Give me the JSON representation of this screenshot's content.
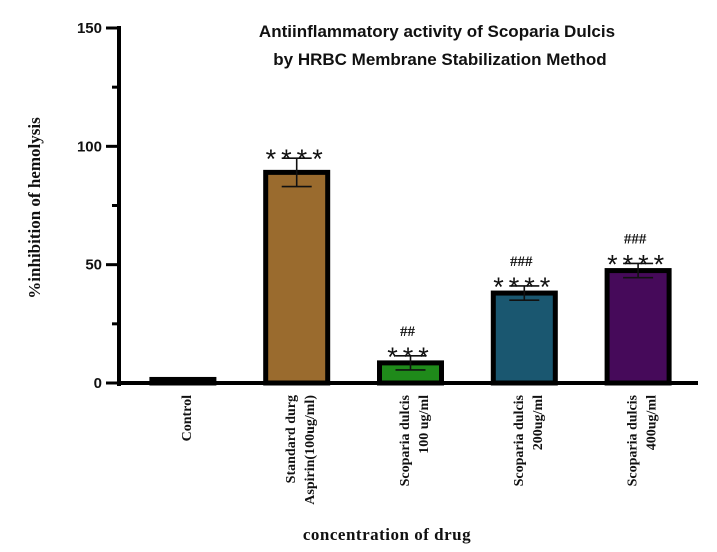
{
  "chart_data": {
    "type": "bar",
    "title": [
      "Antiinflammatory activity of Scoparia Dulcis",
      "by  HRBC Membrane Stabilization Method"
    ],
    "xlabel": "concentration of drug",
    "ylabel": "%inhibition of hemolysis",
    "ylim": [
      0,
      150
    ],
    "yticks": [
      0,
      50,
      100,
      150
    ],
    "categories": [
      [
        "Control"
      ],
      [
        "Standard durg",
        "Aspirin(100ug/ml)"
      ],
      [
        "Scoparia dulcis",
        "100 ug/ml"
      ],
      [
        "Scoparia dulcis",
        "200ug/ml"
      ],
      [
        "Scoparia dulcis",
        "400ug/ml"
      ]
    ],
    "values": [
      1.5,
      89,
      8.5,
      38,
      47.5
    ],
    "errors": [
      0,
      6,
      3,
      3,
      3
    ],
    "colors": [
      "#000000",
      "#9a6b2e",
      "#1f8a1a",
      "#1a5770",
      "#460a5a"
    ],
    "significance": [
      "",
      "****",
      "***",
      "****",
      "****"
    ],
    "hash_marks": [
      "",
      "",
      "##",
      "###",
      "###"
    ]
  }
}
